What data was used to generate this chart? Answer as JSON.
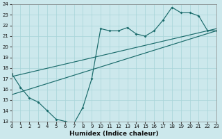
{
  "xlabel": "Humidex (Indice chaleur)",
  "bg_color": "#cce8ec",
  "line_color": "#1a6b6b",
  "grid_color": "#a8d4d8",
  "xlim": [
    0,
    23
  ],
  "ylim": [
    13,
    24
  ],
  "xticks": [
    0,
    1,
    2,
    3,
    4,
    5,
    6,
    7,
    8,
    9,
    10,
    11,
    12,
    13,
    14,
    15,
    16,
    17,
    18,
    19,
    20,
    21,
    22,
    23
  ],
  "yticks": [
    13,
    14,
    15,
    16,
    17,
    18,
    19,
    20,
    21,
    22,
    23,
    24
  ],
  "c1x": [
    0,
    1,
    2,
    3,
    4,
    5,
    6,
    7,
    8,
    9,
    10,
    11,
    12,
    13,
    14,
    15,
    16,
    17,
    18,
    19,
    20,
    21,
    22,
    23
  ],
  "c1y": [
    17.5,
    16.2,
    15.2,
    14.8,
    14.0,
    13.2,
    13.0,
    12.8,
    14.3,
    17.0,
    21.7,
    21.5,
    21.5,
    21.8,
    21.2,
    21.0,
    21.5,
    22.5,
    23.7,
    23.2,
    23.2,
    22.9,
    21.5,
    21.5
  ],
  "c2x": [
    0,
    23
  ],
  "c2y": [
    15.5,
    21.5
  ],
  "c3x": [
    0,
    23
  ],
  "c3y": [
    17.2,
    21.7
  ]
}
